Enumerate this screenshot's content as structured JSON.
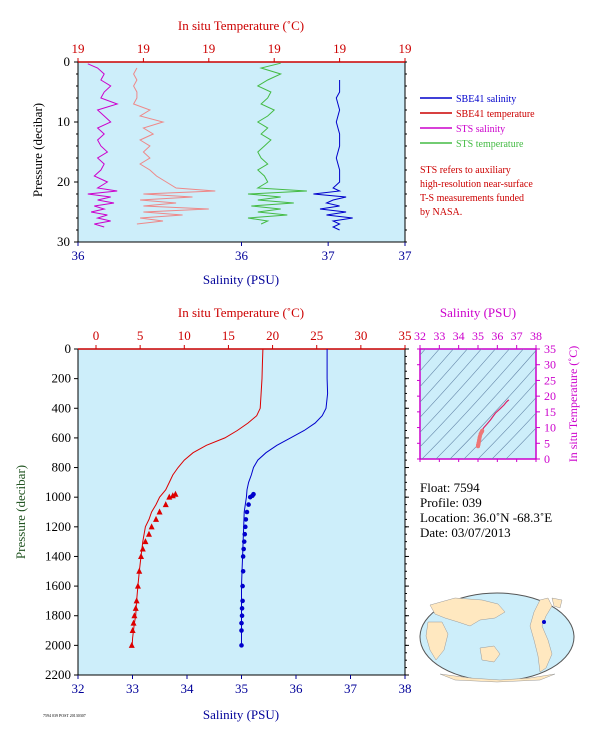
{
  "chart_data": [
    {
      "id": "top",
      "type": "line",
      "title": "",
      "xlabel_top": "In situ Temperature (˚C)",
      "xlabel_bottom": "Salinity (PSU)",
      "ylabel": "Pressure (decibar)",
      "top_ticks": [
        "19",
        "19",
        "19",
        "19",
        "19",
        "19"
      ],
      "bottom_ticks": [
        "36",
        "36",
        "37",
        "37"
      ],
      "y_ticks": [
        "0",
        "10",
        "20",
        "30"
      ],
      "ylim": [
        0,
        30
      ],
      "xlim_salinity": [
        36.0,
        37.0
      ],
      "series": [
        {
          "name": "SBE41 salinity",
          "color": "#0000cc",
          "p": [
            3.0,
            5,
            6,
            8,
            10,
            12,
            14,
            16,
            18,
            20,
            21,
            21.5,
            22,
            22.5,
            23,
            23.5,
            24,
            24.5,
            25,
            25.5,
            26,
            26.5,
            27,
            27.5,
            28
          ],
          "x": [
            36.8,
            36.8,
            36.79,
            36.8,
            36.79,
            36.8,
            36.8,
            36.79,
            36.8,
            36.8,
            36.78,
            36.8,
            36.72,
            36.82,
            36.78,
            36.76,
            36.8,
            36.74,
            36.82,
            36.76,
            36.84,
            36.78,
            36.8,
            36.78,
            36.8
          ]
        },
        {
          "name": "SBE41 temperature",
          "color": "#cc0000",
          "p": [],
          "x": []
        },
        {
          "name": "STS salinity",
          "color": "#cc00cc",
          "p": [
            0.3,
            1,
            2,
            3,
            4,
            5,
            6,
            7,
            8,
            9,
            10,
            11,
            12,
            13,
            14,
            15,
            16,
            17,
            18,
            19,
            20,
            21,
            21.5,
            22,
            22.5,
            23,
            23.5,
            24,
            24.5,
            25,
            25.5,
            26,
            26.5,
            27,
            27.5
          ],
          "x": [
            36.03,
            36.06,
            36.08,
            36.07,
            36.1,
            36.08,
            36.07,
            36.12,
            36.06,
            36.08,
            36.1,
            36.06,
            36.08,
            36.06,
            36.07,
            36.09,
            36.06,
            36.08,
            36.07,
            36.05,
            36.09,
            36.06,
            36.12,
            36.03,
            36.1,
            36.06,
            36.11,
            36.05,
            36.08,
            36.04,
            36.09,
            36.06,
            36.1,
            36.05,
            36.08
          ]
        },
        {
          "name": "STS temperature",
          "color": "#44bb44",
          "p": [
            0.2,
            1,
            2,
            3,
            4,
            5,
            6,
            7,
            8,
            9,
            10,
            11,
            12,
            13,
            14,
            15,
            16,
            17,
            18,
            19,
            20,
            21,
            21.5,
            22,
            22.5,
            23,
            23.5,
            24,
            24.5,
            25,
            25.5,
            26,
            26.5,
            27
          ],
          "x": [
            36.62,
            36.56,
            36.62,
            36.58,
            36.55,
            36.59,
            36.58,
            36.56,
            36.6,
            36.58,
            36.55,
            36.58,
            36.56,
            36.59,
            36.57,
            36.55,
            36.56,
            36.58,
            36.55,
            36.57,
            36.58,
            36.55,
            36.7,
            36.52,
            36.62,
            36.55,
            36.66,
            36.53,
            36.62,
            36.55,
            36.64,
            36.52,
            36.58,
            36.56
          ]
        },
        {
          "name": "STS temperature (in situ, pink)",
          "color": "#ee8888",
          "p": [
            1,
            2,
            3,
            4,
            5,
            6,
            7,
            8,
            9,
            10,
            11,
            12,
            13,
            14,
            15,
            16,
            17,
            18,
            19,
            20,
            21,
            21.5,
            22,
            22.5,
            23,
            23.5,
            24,
            24.5,
            25,
            25.5,
            26,
            26.5,
            27
          ],
          "x": [
            36.18,
            36.17,
            36.18,
            36.17,
            36.18,
            36.18,
            36.17,
            36.22,
            36.19,
            36.26,
            36.2,
            36.23,
            36.19,
            36.22,
            36.2,
            36.22,
            36.19,
            36.22,
            36.24,
            36.27,
            36.3,
            36.42,
            36.2,
            36.35,
            36.19,
            36.3,
            36.2,
            36.4,
            36.2,
            36.32,
            36.19,
            36.26,
            36.18
          ]
        }
      ]
    },
    {
      "id": "main",
      "type": "line",
      "title": "",
      "xlabel_top": "In situ Temperature (˚C)",
      "xlabel_bottom": "Salinity (PSU)",
      "ylabel": "Pressure (decibar)",
      "top_ticks": [
        "0",
        "5",
        "10",
        "15",
        "20",
        "25",
        "30",
        "35"
      ],
      "bottom_ticks": [
        "32",
        "33",
        "34",
        "35",
        "36",
        "37",
        "38"
      ],
      "y_ticks": [
        "0",
        "200",
        "400",
        "600",
        "800",
        "1000",
        "1200",
        "1400",
        "1600",
        "1800",
        "2000",
        "2200"
      ],
      "ylim": [
        0,
        2200
      ],
      "xlim_temp": [
        0,
        35
      ],
      "xlim_salinity": [
        32,
        38
      ],
      "series": [
        {
          "name": "temperature",
          "color": "#dd0000",
          "t": [
            18.9,
            18.85,
            18.8,
            18.7,
            18.6,
            18.2,
            17.2,
            16.0,
            14.6,
            12.5,
            11.0,
            10.0,
            9.3,
            8.7,
            8.3,
            7.9,
            7.2,
            6.8,
            6.3,
            6.0,
            5.6,
            5.3,
            5.1,
            4.9,
            4.75,
            4.6,
            4.5,
            4.35,
            4.25,
            4.15,
            4.1,
            4.05,
            4.0
          ],
          "p": [
            0,
            100,
            200,
            300,
            400,
            450,
            500,
            550,
            600,
            650,
            700,
            750,
            800,
            850,
            900,
            950,
            1000,
            1050,
            1100,
            1150,
            1200,
            1300,
            1400,
            1500,
            1600,
            1700,
            1800,
            1850,
            1900,
            1950,
            2000,
            2000,
            2000
          ]
        },
        {
          "name": "salinity",
          "color": "#0000cc",
          "s": [
            36.57,
            36.57,
            36.57,
            36.58,
            36.55,
            36.48,
            36.35,
            36.15,
            35.9,
            35.65,
            35.45,
            35.3,
            35.22,
            35.18,
            35.13,
            35.1,
            35.09,
            35.07,
            35.05,
            35.04,
            35.03,
            35.02,
            35.01,
            35.0,
            35.0,
            35.0
          ],
          "p": [
            0,
            100,
            200,
            300,
            400,
            450,
            500,
            550,
            600,
            650,
            700,
            750,
            800,
            850,
            900,
            950,
            1000,
            1050,
            1100,
            1200,
            1300,
            1400,
            1500,
            1600,
            1800,
            2000
          ]
        }
      ],
      "markers_temp": {
        "t": [
          9.0,
          8.7,
          8.3,
          7.9,
          7.2,
          6.8,
          6.3,
          6.0,
          5.6,
          5.3,
          5.1,
          4.9,
          4.75,
          4.6,
          4.5,
          4.35,
          4.25,
          4.15,
          4.05
        ],
        "p": [
          980,
          990,
          1000,
          1050,
          1100,
          1150,
          1200,
          1250,
          1300,
          1350,
          1400,
          1500,
          1600,
          1700,
          1750,
          1800,
          1850,
          1900,
          2000
        ]
      },
      "markers_sal": {
        "s": [
          35.22,
          35.2,
          35.16,
          35.13,
          35.1,
          35.08,
          35.07,
          35.06,
          35.05,
          35.04,
          35.03,
          35.03,
          35.02,
          35.02,
          35.01,
          35.01,
          35.0,
          35.0,
          35.0
        ],
        "p": [
          980,
          990,
          1000,
          1050,
          1100,
          1150,
          1200,
          1250,
          1300,
          1350,
          1400,
          1500,
          1600,
          1700,
          1750,
          1800,
          1850,
          1900,
          2000
        ]
      }
    },
    {
      "id": "ts",
      "type": "scatter",
      "xlabel_top": "Salinity (PSU)",
      "ylabel_right": "In situ Temperature (˚C)",
      "x_ticks": [
        "32",
        "33",
        "34",
        "35",
        "36",
        "37",
        "38"
      ],
      "y_ticks": [
        "0",
        "5",
        "10",
        "15",
        "20",
        "25",
        "30",
        "35"
      ],
      "xlim": [
        32,
        38
      ],
      "ylim": [
        0,
        35
      ]
    }
  ],
  "legend": [
    {
      "label": "SBE41 salinity",
      "color": "#0000cc"
    },
    {
      "label": "SBE41 temperature",
      "color": "#cc0000"
    },
    {
      "label": "STS salinity",
      "color": "#cc00cc"
    },
    {
      "label": "STS temperature",
      "color": "#44bb44"
    }
  ],
  "note": [
    "STS refers to auxiliary",
    "high-resolution near-surface",
    "T-S measurements funded",
    "by NASA."
  ],
  "info": {
    "float": "Float:  7594",
    "profile": "Profile:  039",
    "location": "Location:  36.0˚N  -68.3˚E",
    "date": "Date:  03/07/2013"
  },
  "footer": "7594 039 POST 20130307",
  "colors": {
    "panel_bg": "#cdeefa",
    "axis_red": "#cc0000",
    "axis_blue": "#000099",
    "axis_magenta": "#cc00cc",
    "ylabel_green": "#225522"
  }
}
